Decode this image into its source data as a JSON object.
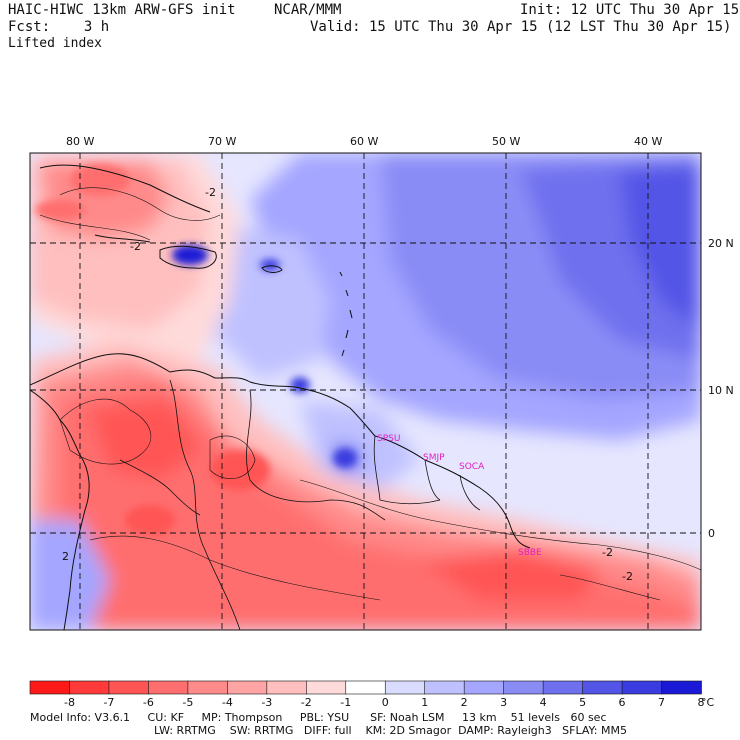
{
  "header": {
    "model": "HAIC-HIWC 13km ARW-GFS init",
    "org": "NCAR/MMM",
    "fcst": "Fcst:    3 h",
    "init": "Init: 12 UTC Thu 30 Apr 15",
    "valid": "Valid: 15 UTC Thu 30 Apr 15 (12 LST Thu 30 Apr 15)",
    "field": "Lifted index"
  },
  "map": {
    "lon_labels": [
      "80 W",
      "70 W",
      "60 W",
      "50 W",
      "40 W"
    ],
    "lat_labels": [
      "20 N",
      "10 N",
      "0"
    ],
    "contour_labels": [
      "-2",
      "-2",
      "-2",
      "2",
      "-2"
    ],
    "stations": [
      "SPSU",
      "SMJP",
      "SOCA",
      "SBBE"
    ]
  },
  "colorbar": {
    "ticks": [
      "-8",
      "-7",
      "-6",
      "-5",
      "-4",
      "-3",
      "-2",
      "-1",
      "0",
      "1",
      "2",
      "3",
      "4",
      "5",
      "6",
      "7",
      "8"
    ],
    "unit": "°C",
    "colors": [
      "#ff1a1a",
      "#ff3a3a",
      "#ff5555",
      "#ff6e6e",
      "#ff8a8a",
      "#ffa4a4",
      "#ffbfbf",
      "#ffdada",
      "#ffffff",
      "#dadcff",
      "#bfc1ff",
      "#a4a6ff",
      "#8a8cf6",
      "#6e70ee",
      "#5355e6",
      "#3a3cdf",
      "#1a1ad6"
    ]
  },
  "footer": {
    "line1": "Model Info: V3.6.1     CU: KF     MP: Thompson     PBL: YSU      SF: Noah LSM     13 km    51 levels   60 sec",
    "line2": "LW: RRTMG    SW: RRTMG   DIFF: full    KM: 2D Smagor  DAMP: Rayleigh3   SFLAY: MM5"
  }
}
